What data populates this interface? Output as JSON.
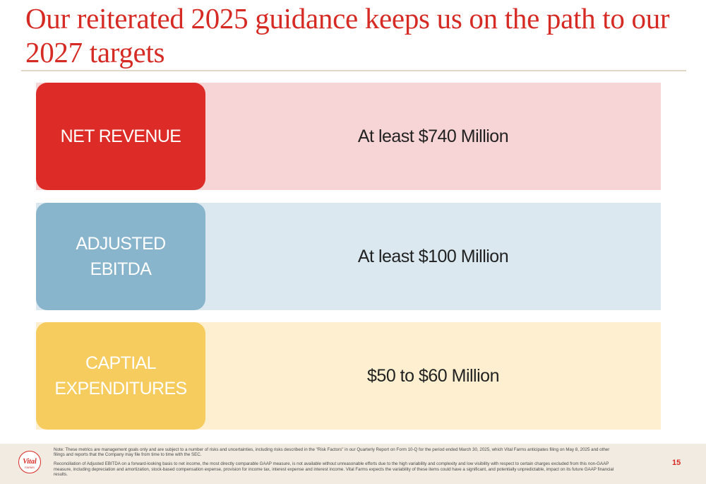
{
  "slide": {
    "title": "Our reiterated 2025 guidance keeps us on the path to our 2027 targets",
    "page_number": "15",
    "brand_color": "#d62b25"
  },
  "rows": [
    {
      "label": "NET REVENUE",
      "value": "At least $740 Million",
      "color": "#dd2c27",
      "band_color": "#f7d5d6"
    },
    {
      "label": "ADJUSTED EBITDA",
      "value": "At least $100 Million",
      "color": "#88b4cc",
      "band_color": "#dbe8f0"
    },
    {
      "label_line1": "CAPTIAL",
      "label_line2": "EXPENDITURES",
      "value": "$50 to $60 Million",
      "color": "#f6cc5e",
      "band_color": "#fdefcf"
    }
  ],
  "footer": {
    "logo_text": "Vital",
    "logo_subtext": "FARMS",
    "note": "Note: These metrics are management goals only and are subject to a number of risks and uncertainties, including risks described in the \"Risk Factors\" in our Quarterly Report on Form 10-Q for the period ended March 30, 2025, which Vital Farms anticipates filing on May 8, 2025 and other filings and reports that the Company may file from time to time with the SEC.",
    "reconciliation": "Reconciliation of Adjusted EBITDA on a forward-looking basis to net income, the most directly comparable GAAP measure, is not available without unreasonable efforts due to the high variability and complexity and low visibility with respect to certain charges excluded from this non-GAAP measure, including depreciation and amortization, stock-based compensation expense, provision for income tax, interest expense and interest income. Vital Farms expects the variability of these items could have a significant, and potentially unpredictable, impact on its future GAAP financial results."
  }
}
